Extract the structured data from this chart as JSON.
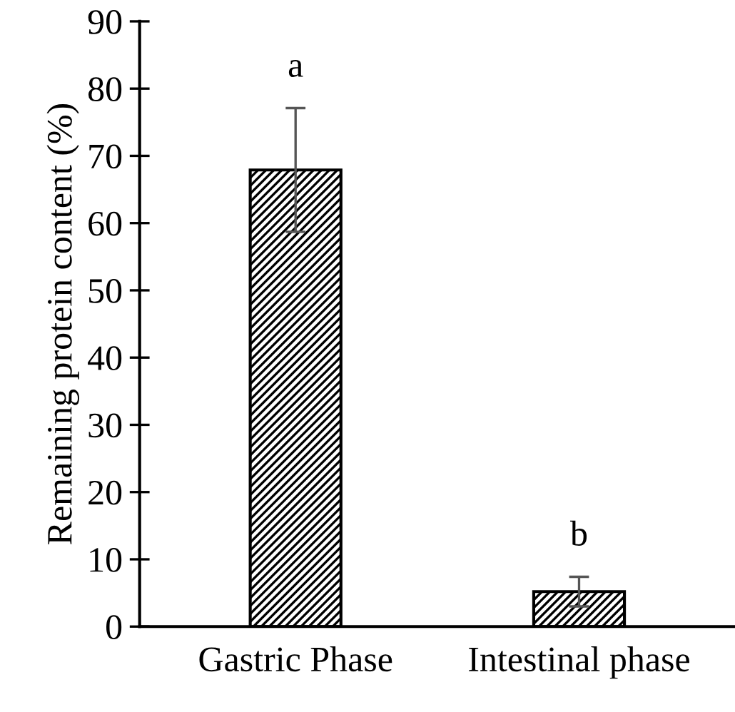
{
  "chart_data": {
    "type": "bar",
    "ylabel": "Remaining protein content (%)",
    "categories": [
      "Gastric Phase",
      "Intestinal phase"
    ],
    "values": [
      67.9,
      5.2
    ],
    "errors": [
      9.2,
      2.2
    ],
    "color": "#000000",
    "ylim": [
      0,
      90
    ],
    "yticks": [
      0,
      10,
      20,
      30,
      40,
      50,
      60,
      70,
      80,
      90
    ],
    "grid": false,
    "annotations": [
      {
        "text": "a",
        "x": "Gastric Phase",
        "y": 77.1
      },
      {
        "text": "b",
        "x": "Intestinal phase",
        "y": 7.4
      }
    ]
  }
}
